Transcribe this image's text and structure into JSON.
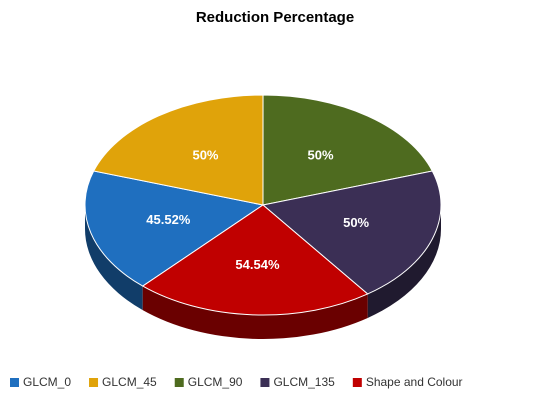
{
  "chart_data": {
    "type": "pie",
    "title": "Reduction Percentage",
    "categories": [
      "GLCM_0",
      "GLCM_45",
      "GLCM_90",
      "GLCM_135",
      "Shape and Colour"
    ],
    "values": [
      45.52,
      50,
      50,
      50,
      54.54
    ],
    "value_labels": [
      "45.52%",
      "50%",
      "50%",
      "50%",
      "54.54%"
    ],
    "colors": [
      "#1f6fbf",
      "#e0a30a",
      "#4e6b1f",
      "#3b2f55",
      "#c00000"
    ],
    "legend": "bottom"
  }
}
